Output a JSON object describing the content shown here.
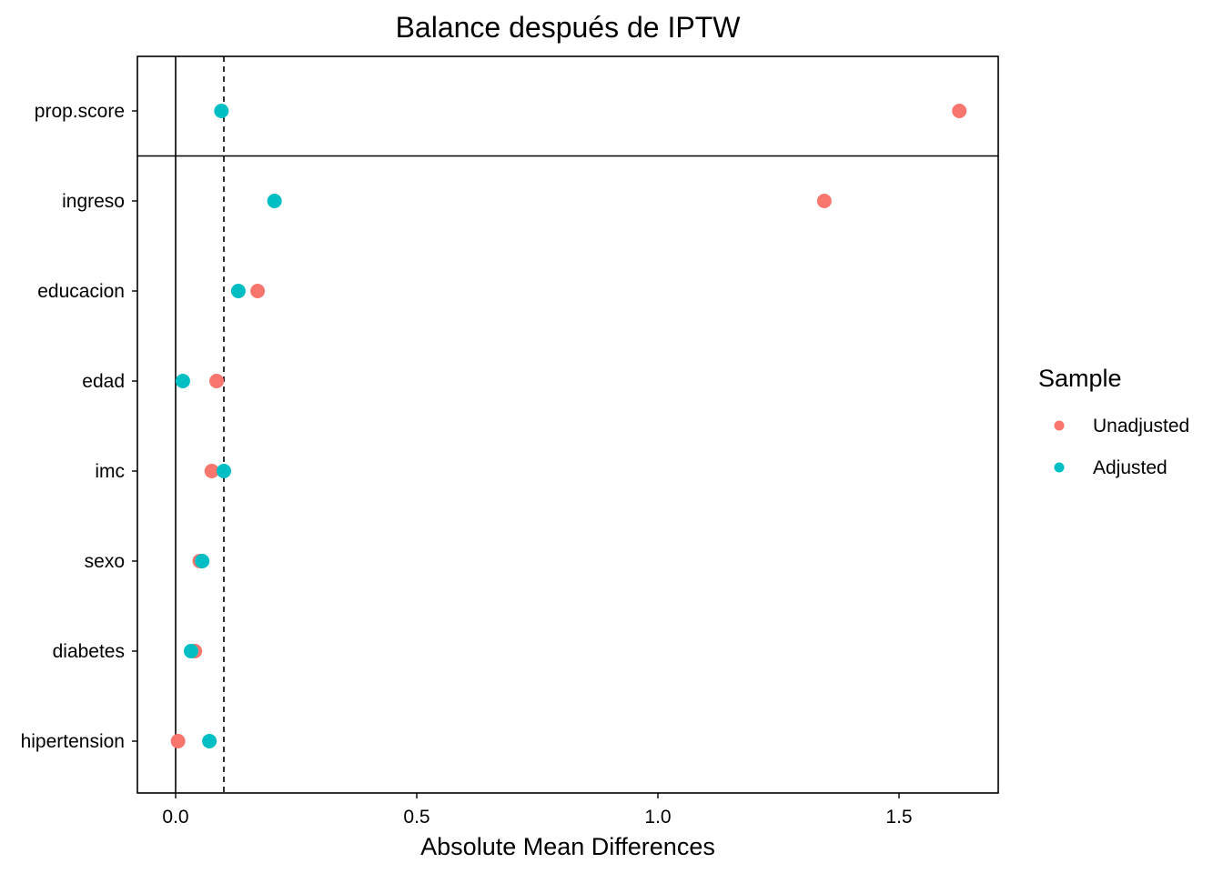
{
  "chart_data": {
    "type": "scatter",
    "title": "Balance después de IPTW",
    "xlabel": "Absolute Mean Differences",
    "ylabel": "",
    "xlim": [
      -0.08,
      1.7
    ],
    "x_ticks": [
      0.0,
      0.5,
      1.0,
      1.5
    ],
    "x_tick_labels": [
      "0.0",
      "0.5",
      "1.0",
      "1.5"
    ],
    "threshold": 0.1,
    "grid": false,
    "legend_position": "right",
    "legend_title": "Sample",
    "categories": [
      "prop.score",
      "ingreso",
      "educacion",
      "edad",
      "imc",
      "sexo",
      "diabetes",
      "hipertension"
    ],
    "series": [
      {
        "name": "Unadjusted",
        "color": "#F8766D",
        "values": [
          1.625,
          1.345,
          0.17,
          0.085,
          0.075,
          0.05,
          0.04,
          0.005
        ]
      },
      {
        "name": "Adjusted",
        "color": "#00BFC4",
        "values": [
          0.095,
          0.205,
          0.13,
          0.015,
          0.1,
          0.055,
          0.032,
          0.07
        ]
      }
    ]
  }
}
